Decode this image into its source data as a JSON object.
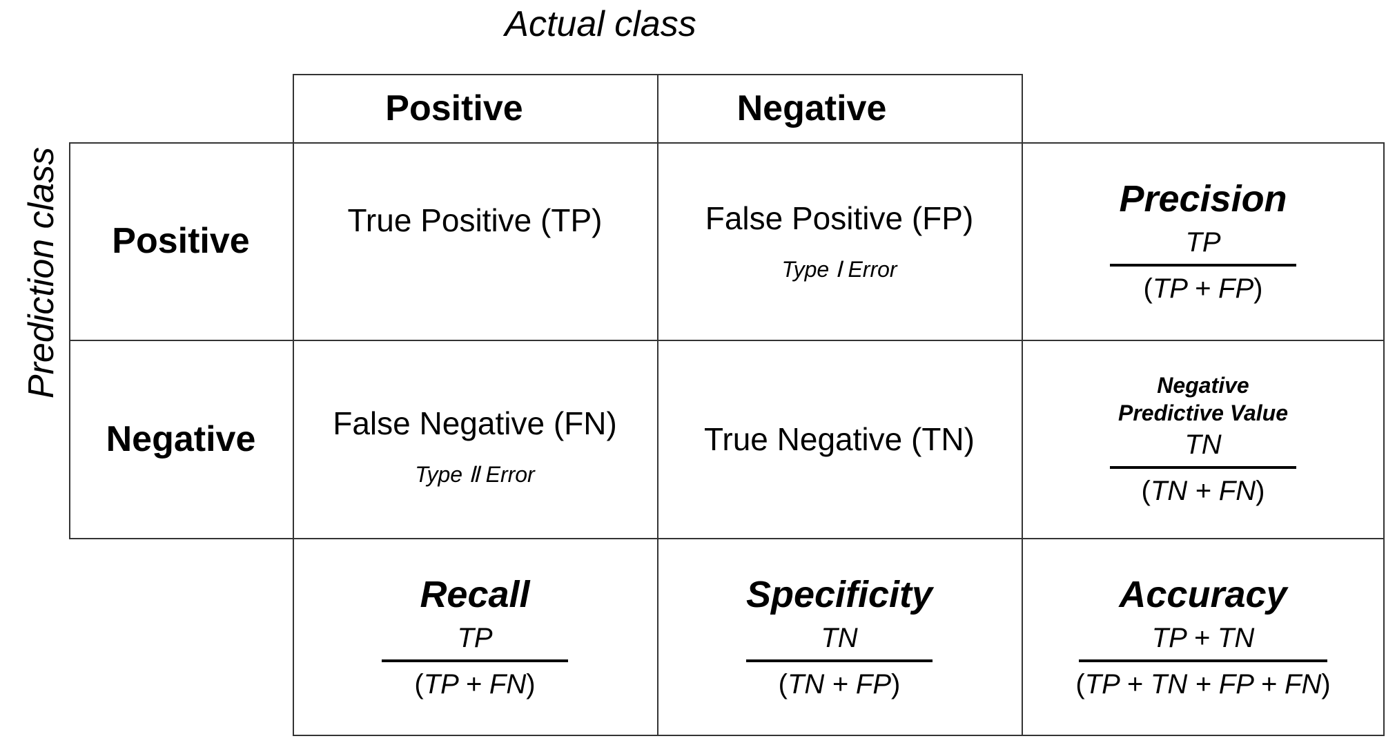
{
  "axis": {
    "actual_label": "Actual class",
    "prediction_label": "Prediction class"
  },
  "columns": {
    "positive": "Positive",
    "negative": "Negative"
  },
  "rows": {
    "positive": "Positive",
    "negative": "Negative"
  },
  "cells": {
    "tp": "True Positive (TP)",
    "fp": "False Positive (FP)",
    "fp_error": "Type Ⅰ Error",
    "fn": "False Negative (FN)",
    "fn_error": "Type Ⅱ Error",
    "tn": "True Negative (TN)"
  },
  "metrics": {
    "precision": {
      "title": "Precision",
      "numerator": "TP",
      "denominator": "TP + FP"
    },
    "npv": {
      "title_line1": "Negative",
      "title_line2": "Predictive Value",
      "numerator": "TN",
      "denominator": "TN + FN"
    },
    "recall": {
      "title": "Recall",
      "numerator": "TP",
      "denominator": "TP + FN"
    },
    "specificity": {
      "title": "Specificity",
      "numerator": "TN",
      "denominator": "TN + FP"
    },
    "accuracy": {
      "title": "Accuracy",
      "numerator": "TP + TN",
      "denominator": "TP + TN + FP + FN"
    }
  }
}
